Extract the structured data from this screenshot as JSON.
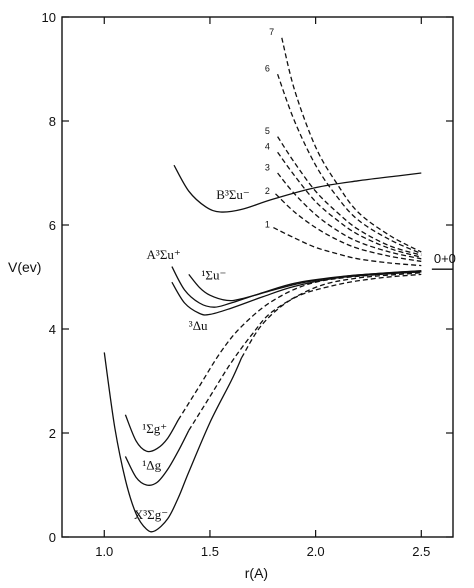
{
  "chart_data": {
    "type": "line",
    "title": "",
    "xlabel": "r(A)",
    "ylabel": "V(ev)",
    "xlim": [
      0.8,
      2.65
    ],
    "ylim": [
      0,
      10
    ],
    "x_ticks": [
      "1.0",
      "1.5",
      "2.0",
      "2.5"
    ],
    "y_ticks": [
      "0",
      "2",
      "4",
      "6",
      "8",
      "10"
    ],
    "x_tick_values": [
      1.0,
      1.5,
      2.0,
      2.5
    ],
    "y_tick_values": [
      0,
      2,
      4,
      6,
      8,
      10
    ],
    "asymptote": {
      "label": "0+0",
      "y": 5.15,
      "x_from": 2.55,
      "x_to": 2.65
    },
    "series": [
      {
        "label": "X3Σg−",
        "style": "solid",
        "points": [
          [
            1.0,
            3.55
          ],
          [
            1.05,
            2.1
          ],
          [
            1.1,
            1.1
          ],
          [
            1.15,
            0.45
          ],
          [
            1.2,
            0.15
          ],
          [
            1.24,
            0.12
          ],
          [
            1.3,
            0.35
          ],
          [
            1.35,
            0.75
          ],
          [
            1.4,
            1.25
          ],
          [
            1.5,
            2.2
          ],
          [
            1.6,
            3.0
          ],
          [
            1.65,
            3.45
          ]
        ]
      },
      {
        "label": "X3Σg−",
        "style": "dashed",
        "points": [
          [
            1.65,
            3.45
          ],
          [
            1.75,
            4.1
          ],
          [
            1.9,
            4.6
          ],
          [
            2.1,
            4.85
          ],
          [
            2.3,
            4.98
          ],
          [
            2.5,
            5.05
          ]
        ]
      },
      {
        "label": "1Δg",
        "style": "solid",
        "points": [
          [
            1.1,
            1.55
          ],
          [
            1.15,
            1.15
          ],
          [
            1.2,
            1.0
          ],
          [
            1.25,
            1.05
          ],
          [
            1.3,
            1.3
          ],
          [
            1.35,
            1.65
          ],
          [
            1.4,
            2.05
          ]
        ]
      },
      {
        "label": "1Δg",
        "style": "dashed",
        "points": [
          [
            1.4,
            2.05
          ],
          [
            1.5,
            2.7
          ],
          [
            1.6,
            3.35
          ],
          [
            1.7,
            3.9
          ],
          [
            1.8,
            4.35
          ],
          [
            2.0,
            4.8
          ],
          [
            2.2,
            4.98
          ],
          [
            2.5,
            5.08
          ]
        ]
      },
      {
        "label": "1Σg+",
        "style": "solid",
        "points": [
          [
            1.1,
            2.35
          ],
          [
            1.15,
            1.85
          ],
          [
            1.2,
            1.65
          ],
          [
            1.25,
            1.7
          ],
          [
            1.3,
            1.9
          ],
          [
            1.35,
            2.25
          ]
        ]
      },
      {
        "label": "1Σg+",
        "style": "dashed",
        "points": [
          [
            1.35,
            2.25
          ],
          [
            1.45,
            2.9
          ],
          [
            1.55,
            3.55
          ],
          [
            1.65,
            4.05
          ],
          [
            1.8,
            4.55
          ],
          [
            2.0,
            4.9
          ],
          [
            2.3,
            5.05
          ],
          [
            2.5,
            5.1
          ]
        ]
      },
      {
        "label": "3Δu",
        "style": "solid",
        "points": [
          [
            1.32,
            4.9
          ],
          [
            1.38,
            4.5
          ],
          [
            1.45,
            4.3
          ],
          [
            1.5,
            4.28
          ],
          [
            1.6,
            4.4
          ],
          [
            1.75,
            4.62
          ],
          [
            1.9,
            4.82
          ],
          [
            2.1,
            4.98
          ],
          [
            2.3,
            5.05
          ],
          [
            2.5,
            5.1
          ]
        ]
      },
      {
        "label": "A3Σu+",
        "style": "solid",
        "points": [
          [
            1.32,
            5.2
          ],
          [
            1.38,
            4.75
          ],
          [
            1.45,
            4.5
          ],
          [
            1.52,
            4.42
          ],
          [
            1.6,
            4.5
          ],
          [
            1.75,
            4.7
          ],
          [
            1.9,
            4.88
          ],
          [
            2.1,
            5.0
          ],
          [
            2.3,
            5.07
          ],
          [
            2.5,
            5.12
          ]
        ]
      },
      {
        "label": "1Σu−",
        "style": "solid",
        "points": [
          [
            1.4,
            5.05
          ],
          [
            1.45,
            4.8
          ],
          [
            1.5,
            4.65
          ],
          [
            1.58,
            4.55
          ],
          [
            1.65,
            4.58
          ],
          [
            1.8,
            4.75
          ],
          [
            1.95,
            4.9
          ],
          [
            2.15,
            5.02
          ],
          [
            2.35,
            5.08
          ],
          [
            2.5,
            5.12
          ]
        ]
      },
      {
        "label": "B3Σu−",
        "style": "solid",
        "points": [
          [
            1.33,
            7.15
          ],
          [
            1.4,
            6.65
          ],
          [
            1.48,
            6.35
          ],
          [
            1.55,
            6.25
          ],
          [
            1.65,
            6.3
          ],
          [
            1.8,
            6.5
          ],
          [
            2.0,
            6.72
          ],
          [
            2.2,
            6.85
          ],
          [
            2.4,
            6.95
          ],
          [
            2.5,
            7.0
          ]
        ]
      },
      {
        "label": "1",
        "style": "dashed",
        "points": [
          [
            1.8,
            5.95
          ],
          [
            1.9,
            5.75
          ],
          [
            2.0,
            5.57
          ],
          [
            2.1,
            5.45
          ],
          [
            2.2,
            5.35
          ],
          [
            2.35,
            5.27
          ],
          [
            2.5,
            5.22
          ]
        ]
      },
      {
        "label": "2",
        "style": "dashed",
        "points": [
          [
            1.81,
            6.6
          ],
          [
            1.9,
            6.25
          ],
          [
            2.0,
            5.95
          ],
          [
            2.1,
            5.72
          ],
          [
            2.2,
            5.55
          ],
          [
            2.35,
            5.4
          ],
          [
            2.5,
            5.3
          ]
        ]
      },
      {
        "label": "3",
        "style": "dashed",
        "points": [
          [
            1.82,
            7.0
          ],
          [
            1.9,
            6.6
          ],
          [
            2.0,
            6.2
          ],
          [
            2.1,
            5.9
          ],
          [
            2.2,
            5.68
          ],
          [
            2.35,
            5.48
          ],
          [
            2.5,
            5.35
          ]
        ]
      },
      {
        "label": "4",
        "style": "dashed",
        "points": [
          [
            1.82,
            7.4
          ],
          [
            1.9,
            6.95
          ],
          [
            2.0,
            6.45
          ],
          [
            2.1,
            6.1
          ],
          [
            2.2,
            5.82
          ],
          [
            2.35,
            5.55
          ],
          [
            2.5,
            5.38
          ]
        ]
      },
      {
        "label": "5",
        "style": "dashed",
        "points": [
          [
            1.82,
            7.7
          ],
          [
            1.9,
            7.2
          ],
          [
            2.0,
            6.65
          ],
          [
            2.1,
            6.25
          ],
          [
            2.2,
            5.92
          ],
          [
            2.35,
            5.6
          ],
          [
            2.5,
            5.42
          ]
        ]
      },
      {
        "label": "6",
        "style": "dashed",
        "points": [
          [
            1.82,
            8.9
          ],
          [
            1.9,
            8.0
          ],
          [
            2.0,
            7.15
          ],
          [
            2.1,
            6.55
          ],
          [
            2.2,
            6.1
          ],
          [
            2.35,
            5.72
          ],
          [
            2.5,
            5.45
          ]
        ]
      },
      {
        "label": "7",
        "style": "dashed",
        "points": [
          [
            1.84,
            9.6
          ],
          [
            1.9,
            8.6
          ],
          [
            2.0,
            7.5
          ],
          [
            2.1,
            6.8
          ],
          [
            2.2,
            6.25
          ],
          [
            2.35,
            5.8
          ],
          [
            2.5,
            5.48
          ]
        ]
      }
    ],
    "labels": [
      {
        "text": "X³Σg⁻",
        "x": 1.14,
        "y": 0.35
      },
      {
        "text": "¹Δg",
        "x": 1.18,
        "y": 1.3
      },
      {
        "text": "¹Σg⁺",
        "x": 1.18,
        "y": 2.0
      },
      {
        "text": "³Δu",
        "x": 1.4,
        "y": 3.98
      },
      {
        "text": "A³Σu⁺",
        "x": 1.2,
        "y": 5.35
      },
      {
        "text": "¹Σu⁻",
        "x": 1.46,
        "y": 4.95
      },
      {
        "text": "B³Σu⁻",
        "x": 1.53,
        "y": 6.5
      },
      {
        "text": "1",
        "x": 1.76,
        "y": 5.95
      },
      {
        "text": "2",
        "x": 1.76,
        "y": 6.6
      },
      {
        "text": "3",
        "x": 1.76,
        "y": 7.05
      },
      {
        "text": "4",
        "x": 1.76,
        "y": 7.45
      },
      {
        "text": "5",
        "x": 1.76,
        "y": 7.75
      },
      {
        "text": "6",
        "x": 1.76,
        "y": 8.95
      },
      {
        "text": "7",
        "x": 1.78,
        "y": 9.65
      }
    ],
    "grid": false,
    "legend": "none"
  }
}
